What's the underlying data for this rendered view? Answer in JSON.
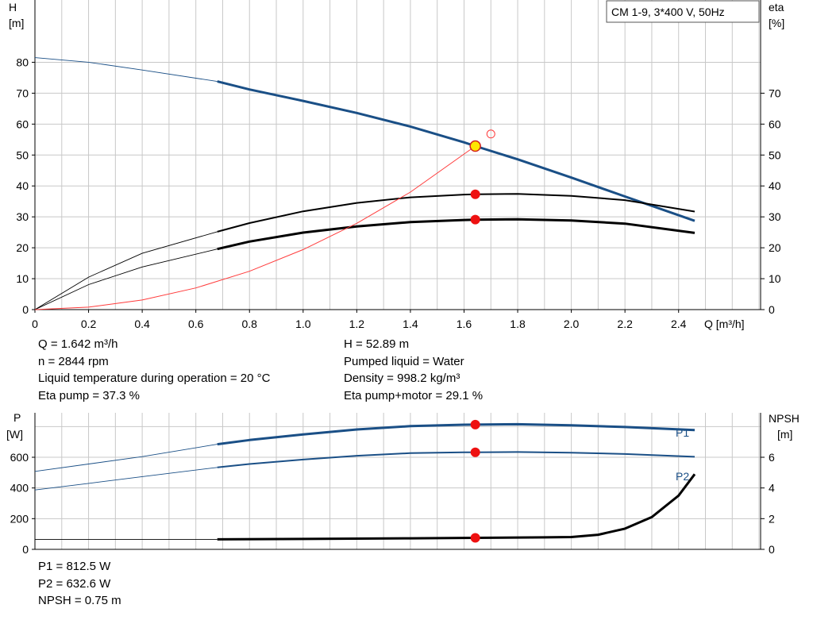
{
  "title_box": "CM 1-9, 3*400 V, 50Hz",
  "colors": {
    "grid": "#c8c8c8",
    "head": "#1a4f86",
    "efficiency": "#000000",
    "power": "#1a4f86",
    "npsh": "#000000",
    "system_curve": "#ff3b3b",
    "duty_point": "#ee1111",
    "duty_marker_fill": "#ffe600"
  },
  "chart_data": [
    {
      "type": "line",
      "name": "head-efficiency",
      "xlabel": "Q [m³/h]",
      "ylabel_left": [
        "H",
        "[m]"
      ],
      "ylabel_right": [
        "eta",
        "[%]"
      ],
      "xlim": [
        0,
        2.7
      ],
      "ylim_left": [
        0,
        90
      ],
      "ylim_right": [
        0,
        90
      ],
      "grid": true,
      "x_ticks": [
        "0",
        "0.2",
        "0.4",
        "0.6",
        "0.8",
        "1.0",
        "1.2",
        "1.4",
        "1.6",
        "1.8",
        "2.0",
        "2.2",
        "2.4"
      ],
      "y_ticks_left": [
        "0",
        "10",
        "20",
        "30",
        "40",
        "50",
        "60",
        "70",
        "80"
      ],
      "y_ticks_right": [
        "0",
        "10",
        "20",
        "30",
        "40",
        "50",
        "60",
        "70"
      ],
      "series": [
        {
          "key": "H",
          "axis": "left",
          "x": [
            0,
            0.2,
            0.4,
            0.68,
            0.8,
            1.0,
            1.2,
            1.4,
            1.6,
            1.642,
            1.8,
            2.0,
            2.2,
            2.46
          ],
          "y": [
            81.5,
            80,
            77.5,
            73.8,
            71.2,
            67.5,
            63.6,
            59.2,
            54.1,
            52.89,
            48.6,
            42.7,
            36.6,
            28.7
          ],
          "operating_from": 0.68
        },
        {
          "key": "eta_pump",
          "axis": "right",
          "x": [
            0,
            0.2,
            0.4,
            0.68,
            0.8,
            1.0,
            1.2,
            1.4,
            1.6,
            1.642,
            1.8,
            2.0,
            2.2,
            2.46
          ],
          "y": [
            0,
            10.5,
            18.2,
            25.2,
            28,
            31.8,
            34.5,
            36.3,
            37.2,
            37.3,
            37.4,
            36.8,
            35.4,
            31.7
          ],
          "operating_from": 0.68
        },
        {
          "key": "eta_pump_motor",
          "axis": "right",
          "x": [
            0,
            0.2,
            0.4,
            0.68,
            0.8,
            1.0,
            1.2,
            1.4,
            1.6,
            1.642,
            1.8,
            2.0,
            2.2,
            2.46
          ],
          "y": [
            0,
            8.1,
            13.8,
            19.6,
            22,
            24.9,
            26.9,
            28.3,
            29,
            29.1,
            29.2,
            28.8,
            27.8,
            24.8
          ],
          "operating_from": 0.68
        },
        {
          "key": "system",
          "axis": "left",
          "x": [
            0,
            0.2,
            0.4,
            0.6,
            0.8,
            1.0,
            1.2,
            1.4,
            1.642
          ],
          "y": [
            0,
            0.8,
            3.1,
            7.0,
            12.4,
            19.4,
            27.9,
            38.0,
            52.89
          ]
        }
      ],
      "duty_points": [
        {
          "key": "H",
          "x": 1.642,
          "y": 52.89
        },
        {
          "key": "eta_pump",
          "x": 1.642,
          "y": 37.3
        },
        {
          "key": "eta_pump_motor",
          "x": 1.642,
          "y": 29.1
        }
      ],
      "requested_point": {
        "x": 1.7,
        "y": 56.8
      }
    },
    {
      "type": "line",
      "name": "power-npsh",
      "ylabel_left": [
        "P",
        "[W]"
      ],
      "ylabel_right": [
        "NPSH",
        "[m]"
      ],
      "xlim": [
        0,
        2.7
      ],
      "ylim_left": [
        0,
        900
      ],
      "ylim_right": [
        0,
        9
      ],
      "grid": true,
      "y_ticks_left": [
        "0",
        "200",
        "400",
        "600"
      ],
      "y_ticks_right": [
        "0",
        "2",
        "4",
        "6"
      ],
      "series": [
        {
          "key": "P1",
          "name": "P1",
          "axis": "left",
          "x": [
            0,
            0.2,
            0.4,
            0.68,
            0.8,
            1.0,
            1.2,
            1.4,
            1.6,
            1.642,
            1.8,
            2.0,
            2.2,
            2.46
          ],
          "y": [
            508,
            556,
            604,
            685,
            712,
            749,
            781,
            803,
            812,
            812.5,
            815,
            808,
            797,
            777
          ],
          "operating_from": 0.68
        },
        {
          "key": "P2",
          "name": "P2",
          "axis": "left",
          "x": [
            0,
            0.2,
            0.4,
            0.68,
            0.8,
            1.0,
            1.2,
            1.4,
            1.6,
            1.642,
            1.8,
            2.0,
            2.2,
            2.46
          ],
          "y": [
            387,
            430,
            474,
            534,
            556,
            585,
            610,
            627,
            632,
            632.6,
            634,
            630,
            621,
            603
          ],
          "operating_from": 0.68
        },
        {
          "key": "NPSH",
          "axis": "right",
          "x": [
            0,
            0.68,
            1.0,
            1.4,
            1.642,
            1.9,
            2.0,
            2.1,
            2.2,
            2.3,
            2.4,
            2.46
          ],
          "y": [
            0.65,
            0.65,
            0.68,
            0.72,
            0.75,
            0.78,
            0.8,
            0.95,
            1.35,
            2.1,
            3.5,
            4.9
          ],
          "operating_from": 0.68
        }
      ],
      "duty_points": [
        {
          "key": "P1",
          "x": 1.642,
          "y": 812.5
        },
        {
          "key": "P2",
          "x": 1.642,
          "y": 632.6
        },
        {
          "key": "NPSH",
          "x": 1.642,
          "y": 0.75
        }
      ]
    }
  ],
  "info_top_left": [
    "Q = 1.642 m³/h",
    "n = 2844 rpm",
    "Liquid temperature during operation = 20 °C",
    "Eta pump = 37.3 %"
  ],
  "info_top_right": [
    "H = 52.89 m",
    "Pumped liquid = Water",
    "Density = 998.2 kg/m³",
    "Eta pump+motor = 29.1 %"
  ],
  "info_bottom": [
    "P1 = 812.5 W",
    "P2 = 632.6 W",
    "NPSH = 0.75 m"
  ]
}
